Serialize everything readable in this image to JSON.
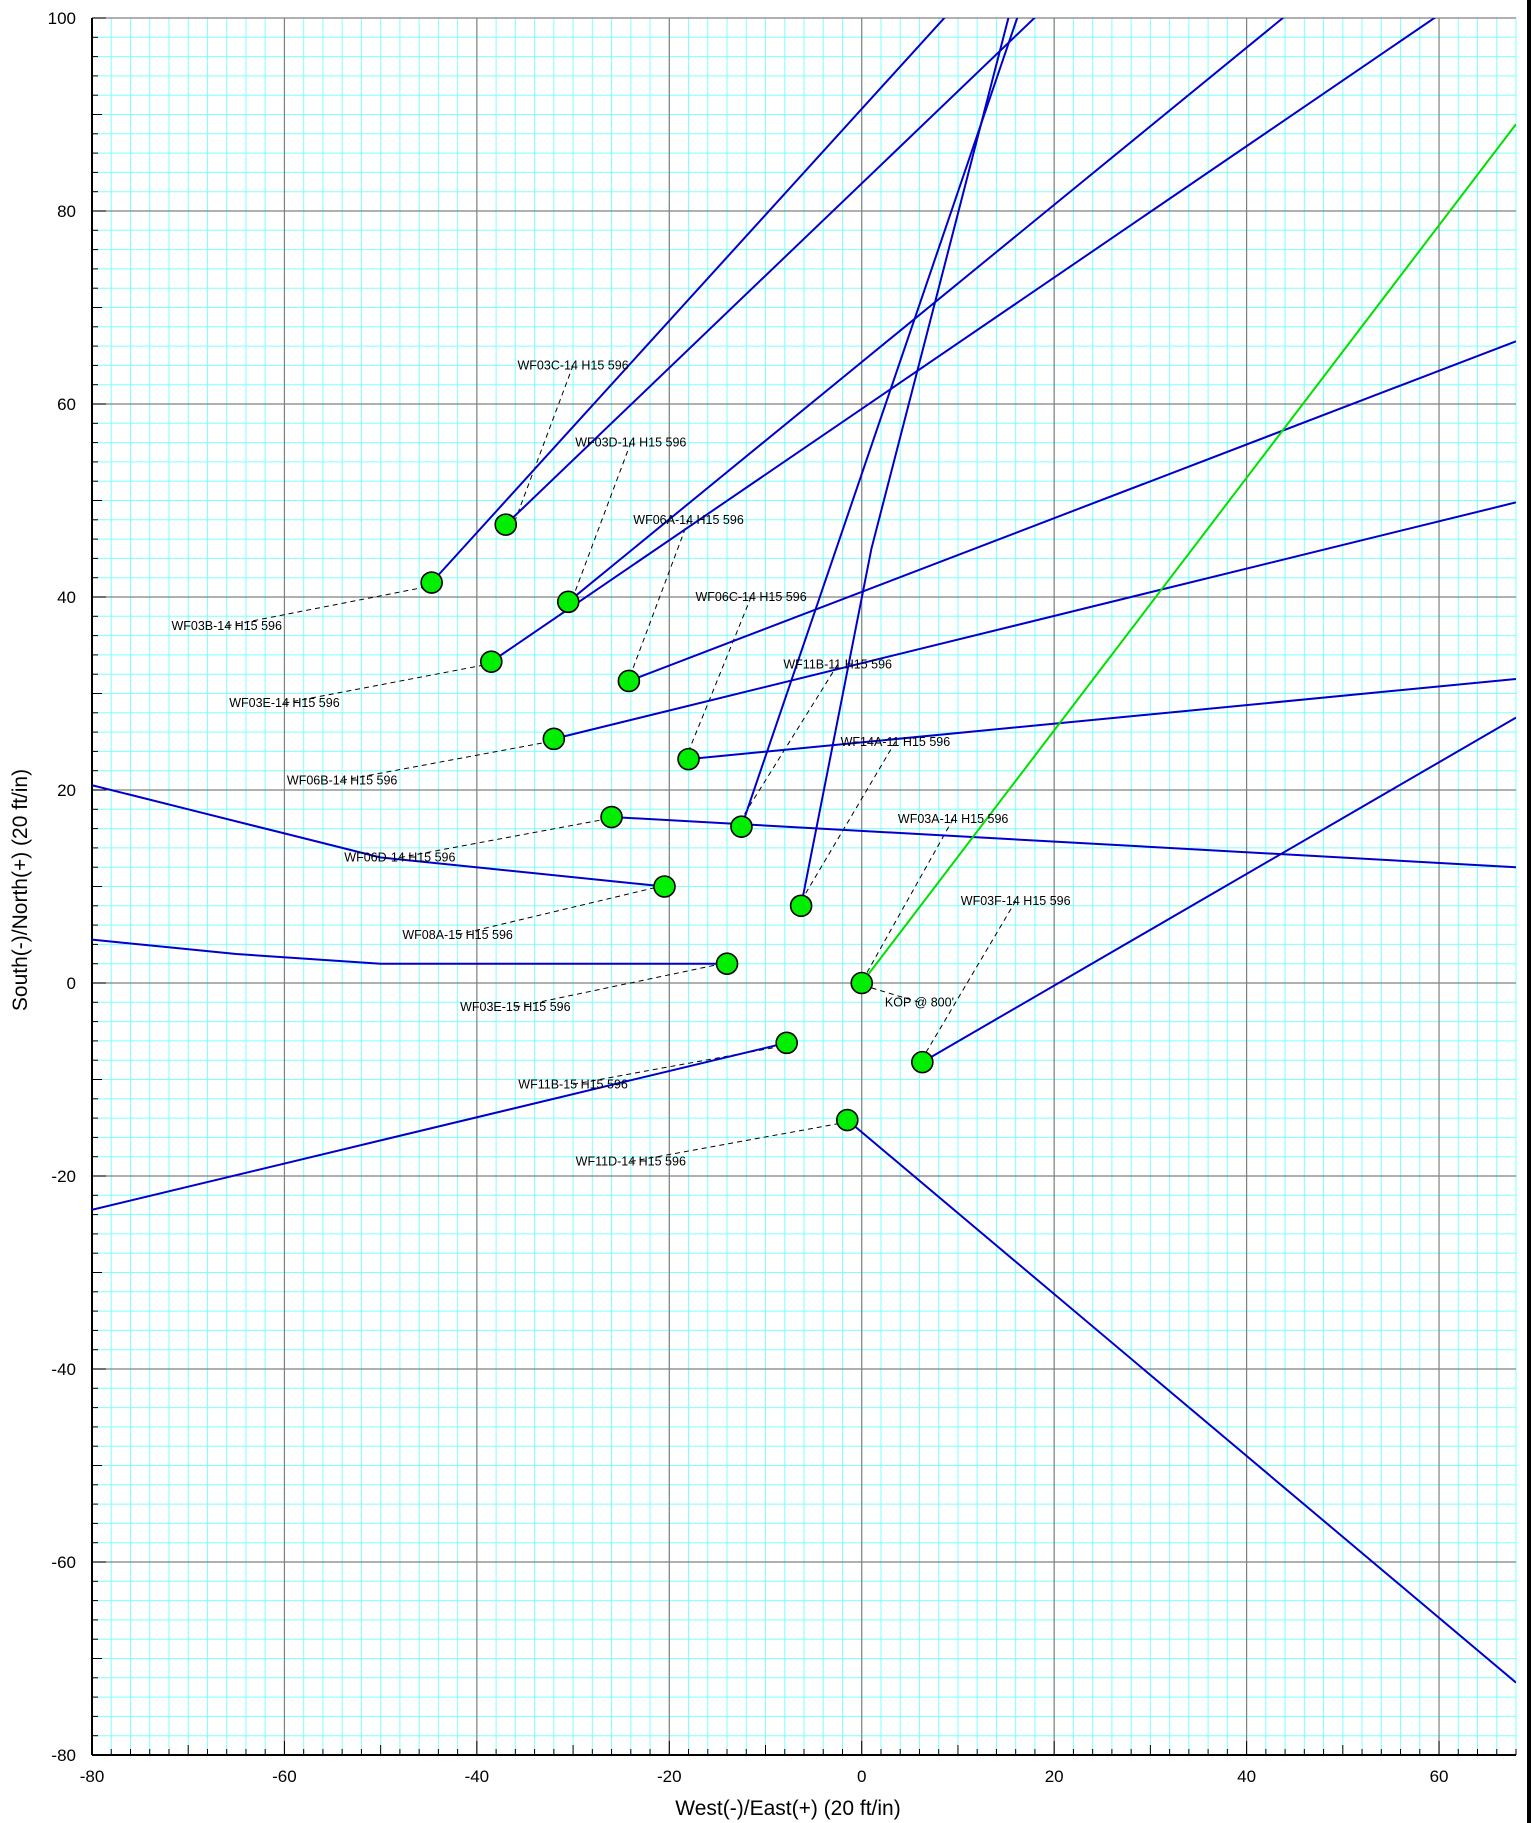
{
  "chart_data": {
    "type": "line",
    "xlabel": "West(-)/East(+) (20 ft/in)",
    "ylabel": "South(-)/North(+) (20 ft/in)",
    "xlim": [
      -80,
      68
    ],
    "ylim": [
      -80,
      100
    ],
    "x_ticks": [
      -80,
      -60,
      -40,
      -20,
      0,
      20,
      40,
      60
    ],
    "y_ticks": [
      -80,
      -60,
      -40,
      -20,
      0,
      20,
      40,
      60,
      80,
      100
    ],
    "x_tick_labels": [
      "-80",
      "-60",
      "-40",
      "-20",
      "0",
      "20",
      "40",
      "60"
    ],
    "y_tick_labels": [
      "-80",
      "-60",
      "-40",
      "-20",
      "0",
      "20",
      "40",
      "60",
      "80",
      "100"
    ],
    "grid": true,
    "colors": {
      "minor_grid": "#80ffff",
      "major_grid": "#808080",
      "well_path": "#0000cc",
      "planned_path": "#00e000",
      "marker_fill": "#00ee00",
      "leader": "#000000"
    },
    "wells": [
      {
        "label": "WF03C-14 H15 596",
        "start": [
          -37,
          47.5
        ],
        "label_at": [
          -30,
          64
        ],
        "leader_to": [
          -36,
          48
        ],
        "path": [
          [
            -37,
            47.5
          ],
          [
            19,
            101
          ]
        ]
      },
      {
        "label": "WF03B-14 H15 596",
        "start": [
          -44.7,
          41.5
        ],
        "label_at": [
          -66,
          37
        ],
        "leader_to": [
          -45.5,
          41
        ],
        "path": [
          [
            -44.7,
            41.5
          ],
          [
            9.5,
            101
          ]
        ]
      },
      {
        "label": "WF03D-14 H15 596",
        "start": [
          -30.5,
          39.5
        ],
        "label_at": [
          -24,
          56
        ],
        "leader_to": [
          -30,
          40
        ],
        "path": [
          [
            -30.5,
            39.5
          ],
          [
            45,
            101
          ]
        ]
      },
      {
        "label": "WF06A-14 H15 596",
        "start": [
          -24.2,
          31.3
        ],
        "label_at": [
          -18,
          48
        ],
        "leader_to": [
          -24,
          32
        ],
        "path": [
          [
            -24.2,
            31.3
          ],
          [
            68,
            66.5
          ]
        ]
      },
      {
        "label": "WF03E-14 H15 596",
        "start": [
          -38.5,
          33.3
        ],
        "label_at": [
          -60,
          29
        ],
        "leader_to": [
          -39,
          33
        ],
        "path": [
          [
            -38.5,
            33.3
          ],
          [
            61,
            101
          ]
        ]
      },
      {
        "label": "WF06C-14 H15 596",
        "start": [
          -18,
          23.2
        ],
        "label_at": [
          -11.5,
          40
        ],
        "leader_to": [
          -18,
          24
        ],
        "path": [
          [
            -18,
            23.2
          ],
          [
            68,
            31.5
          ]
        ]
      },
      {
        "label": "WF11B-11 H15 596",
        "start": [
          -12.5,
          16.2
        ],
        "label_at": [
          -2.5,
          33
        ],
        "leader_to": [
          -12.5,
          17
        ],
        "path": [
          [
            -12.5,
            16.2
          ],
          [
            16.5,
            101
          ]
        ]
      },
      {
        "label": "WF06B-14 H15 596",
        "start": [
          -32,
          25.3
        ],
        "label_at": [
          -54,
          21
        ],
        "leader_to": [
          -32.5,
          25
        ],
        "path": [
          [
            -32,
            25.3
          ],
          [
            68,
            49.8
          ]
        ]
      },
      {
        "label": "WF14A-11 H15 596",
        "start": [
          -6.3,
          8
        ],
        "label_at": [
          3.5,
          25
        ],
        "leader_to": [
          -6,
          9
        ],
        "path": [
          [
            -6.3,
            8
          ],
          [
            1,
            45
          ],
          [
            15.5,
            101
          ]
        ]
      },
      {
        "label": "WF06D-14 H15 596",
        "start": [
          -26,
          17.2
        ],
        "label_at": [
          -48,
          13
        ],
        "leader_to": [
          -26.5,
          17
        ],
        "path": [
          [
            -26,
            17.2
          ],
          [
            68,
            12
          ]
        ]
      },
      {
        "label": "WF03A-14 H15 596",
        "start": [
          0,
          0
        ],
        "label_at": [
          9.5,
          17
        ],
        "leader_to": [
          0.5,
          1
        ],
        "path": [],
        "planned": true,
        "planned_path": [
          [
            0,
            0
          ],
          [
            68,
            89
          ]
        ]
      },
      {
        "label": "WF08A-15 H15 596",
        "start": [
          -20.5,
          10
        ],
        "label_at": [
          -42,
          5
        ],
        "leader_to": [
          -21,
          10
        ],
        "path": [
          [
            -20.5,
            10
          ],
          [
            -50,
            13
          ],
          [
            -60,
            15.5
          ],
          [
            -70,
            18
          ],
          [
            -80,
            20.5
          ]
        ]
      },
      {
        "label": "WF03F-14 H15 596",
        "start": [
          6.3,
          -8.2
        ],
        "label_at": [
          16,
          8.5
        ],
        "leader_to": [
          6.5,
          -7.5
        ],
        "path": [
          [
            6.3,
            -8.2
          ],
          [
            68,
            27.5
          ]
        ]
      },
      {
        "label": "WF03E-15 H15 596",
        "start": [
          -14,
          2
        ],
        "label_at": [
          -36,
          -2.5
        ],
        "leader_to": [
          -14.5,
          2
        ],
        "path": [
          [
            -14,
            2
          ],
          [
            -50,
            2
          ],
          [
            -65,
            3
          ],
          [
            -80,
            4.5
          ]
        ]
      },
      {
        "label": "KOP @ 800'",
        "start": [
          0,
          0
        ],
        "label_at": [
          6,
          -2
        ],
        "leader_to": [
          1,
          -0.5
        ],
        "path": []
      },
      {
        "label": "WF11B-15 H15 596",
        "start": [
          -7.8,
          -6.2
        ],
        "label_at": [
          -30,
          -10.5
        ],
        "leader_to": [
          -8,
          -6.5
        ],
        "path": [
          [
            -7.8,
            -6.2
          ],
          [
            -80,
            -23.5
          ]
        ]
      },
      {
        "label": "WF11D-14 H15 596",
        "start": [
          -1.5,
          -14.2
        ],
        "label_at": [
          -24,
          -18.5
        ],
        "leader_to": [
          -2,
          -14.5
        ],
        "path": [
          [
            -1.5,
            -14.2
          ],
          [
            68,
            -72.5
          ]
        ]
      }
    ]
  }
}
